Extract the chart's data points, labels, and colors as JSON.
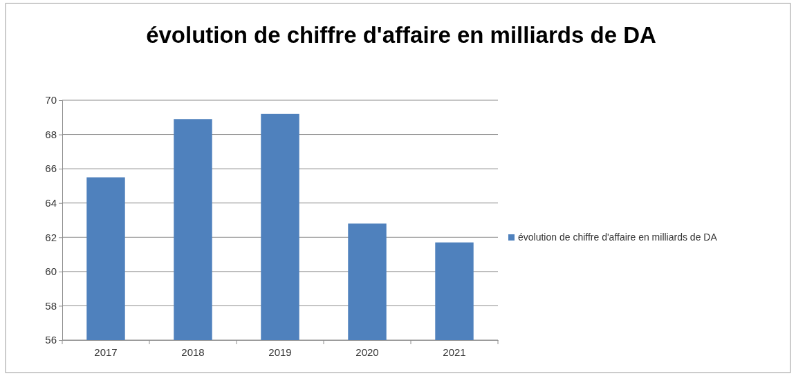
{
  "chart_data": {
    "type": "bar",
    "title": "évolution de chiffre d'affaire en milliards de DA",
    "categories": [
      "2017",
      "2018",
      "2019",
      "2020",
      "2021"
    ],
    "series": [
      {
        "name": "évolution de chiffre d'affaire en milliards de DA",
        "color": "#4f81bd",
        "values": [
          65.5,
          68.9,
          69.2,
          62.8,
          61.7
        ]
      }
    ],
    "ylim": [
      56,
      70
    ],
    "yticks": [
      56,
      58,
      60,
      62,
      64,
      66,
      68,
      70
    ],
    "grid": "y",
    "legend": "right"
  }
}
